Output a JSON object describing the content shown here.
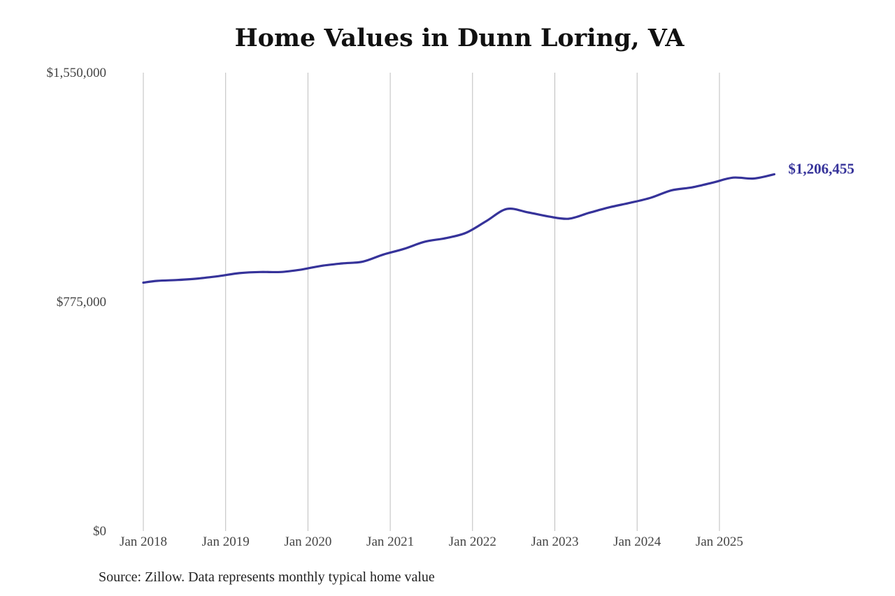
{
  "chart_data": {
    "type": "line",
    "title": "Home Values in Dunn Loring, VA",
    "source": "Source: Zillow. Data represents monthly typical home value",
    "xlabel": "",
    "ylabel": "",
    "ylim": [
      0,
      1550000
    ],
    "y_ticks": [
      {
        "value": 0,
        "label": "$0"
      },
      {
        "value": 775000,
        "label": "$775,000"
      },
      {
        "value": 1550000,
        "label": "$1,550,000"
      }
    ],
    "x_ticks": [
      "Jan 2018",
      "Jan 2019",
      "Jan 2020",
      "Jan 2021",
      "Jan 2022",
      "Jan 2023",
      "Jan 2024",
      "Jan 2025"
    ],
    "x_range": [
      "2018-01",
      "2025-09"
    ],
    "grid": "vertical",
    "line_color": "#36339a",
    "end_label": "$1,206,455",
    "series": [
      {
        "points": [
          [
            "2018-01",
            840000
          ],
          [
            "2018-03",
            846000
          ],
          [
            "2018-06",
            849000
          ],
          [
            "2018-09",
            854000
          ],
          [
            "2018-12",
            862000
          ],
          [
            "2019-03",
            872000
          ],
          [
            "2019-06",
            876000
          ],
          [
            "2019-09",
            876000
          ],
          [
            "2019-12",
            884000
          ],
          [
            "2020-03",
            897000
          ],
          [
            "2020-06",
            905000
          ],
          [
            "2020-09",
            911000
          ],
          [
            "2020-12",
            935000
          ],
          [
            "2021-03",
            954000
          ],
          [
            "2021-06",
            978000
          ],
          [
            "2021-09",
            990000
          ],
          [
            "2021-12",
            1008000
          ],
          [
            "2022-03",
            1048000
          ],
          [
            "2022-06",
            1089000
          ],
          [
            "2022-09",
            1078000
          ],
          [
            "2022-12",
            1064000
          ],
          [
            "2023-03",
            1056000
          ],
          [
            "2023-06",
            1076000
          ],
          [
            "2023-09",
            1095000
          ],
          [
            "2023-12",
            1110000
          ],
          [
            "2024-03",
            1127000
          ],
          [
            "2024-06",
            1152000
          ],
          [
            "2024-09",
            1162000
          ],
          [
            "2024-12",
            1178000
          ],
          [
            "2025-03",
            1195000
          ],
          [
            "2025-06",
            1192000
          ],
          [
            "2025-09",
            1206455
          ]
        ]
      }
    ]
  }
}
